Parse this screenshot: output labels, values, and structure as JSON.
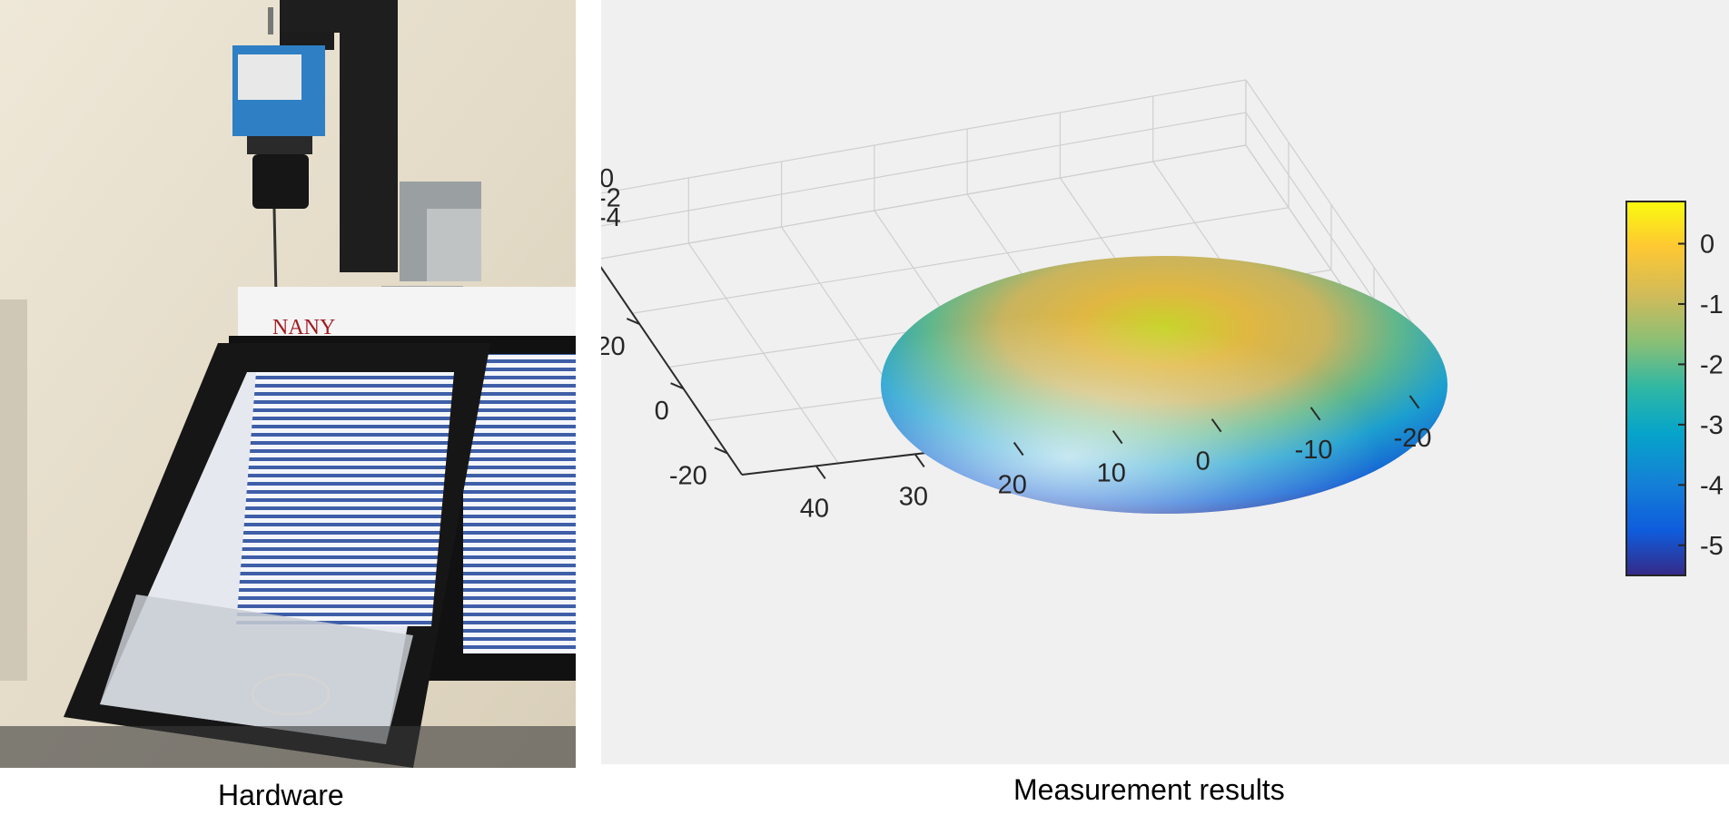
{
  "captions": {
    "left": "Hardware",
    "right": "Measurement results"
  },
  "photo": {
    "logo_text": "NANY"
  },
  "chart_data": {
    "type": "surface",
    "x_ticks": [
      -20,
      -10,
      0,
      10,
      20,
      30,
      40
    ],
    "y_ticks": [
      -20,
      0,
      20
    ],
    "z_ticks": [
      0,
      -2,
      -4
    ],
    "colorbar_ticks": [
      0,
      -1,
      -2,
      -3,
      -4,
      -5
    ],
    "colorbar_range": [
      -5.5,
      0.7
    ],
    "colormap": "parula",
    "colormap_colors": [
      "#352a87",
      "#0f5cdd",
      "#1481d6",
      "#06a4ca",
      "#2eb7a4",
      "#87bf77",
      "#d1bb59",
      "#fec832",
      "#f9fb0e"
    ],
    "grid": true,
    "colorbar_placement": "right",
    "background": "#f0f0f0"
  }
}
